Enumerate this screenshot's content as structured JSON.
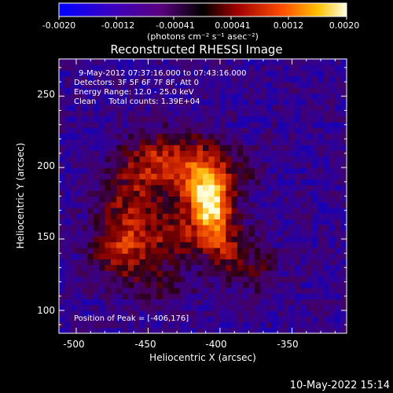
{
  "colorbar": {
    "tick_labels": [
      "-0.0020",
      "-0.0012",
      "-0.00041",
      "0.00041",
      "0.0012",
      "0.0020"
    ],
    "units": "(photons cm⁻² s⁻¹ asec⁻²)",
    "range": [
      -0.002,
      0.002
    ]
  },
  "chart_data": {
    "type": "heatmap",
    "title": "Reconstructed RHESSI Image",
    "xlabel": "Heliocentric X (arcsec)",
    "ylabel": "Heliocentric Y (arcsec)",
    "xlim": [
      -512,
      -312
    ],
    "ylim": [
      84,
      276
    ],
    "x_ticks": [
      -500,
      -450,
      -400,
      -350
    ],
    "y_ticks": [
      100,
      150,
      200,
      250
    ],
    "annotations": [
      "9-May-2012 07:37:16.000 to 07:43:16.000",
      "Detectors: 3F 5F 6F 7F 8F, Att 0",
      "Energy Range: 12.0 - 25.0 keV",
      "Clean     Total counts: 1.39E+04"
    ],
    "peak_label": "Position of Peak = [-406,176]",
    "peak": [
      -406,
      176
    ],
    "grid": false
  },
  "footer": {
    "timestamp": "10-May-2022 15:14"
  }
}
